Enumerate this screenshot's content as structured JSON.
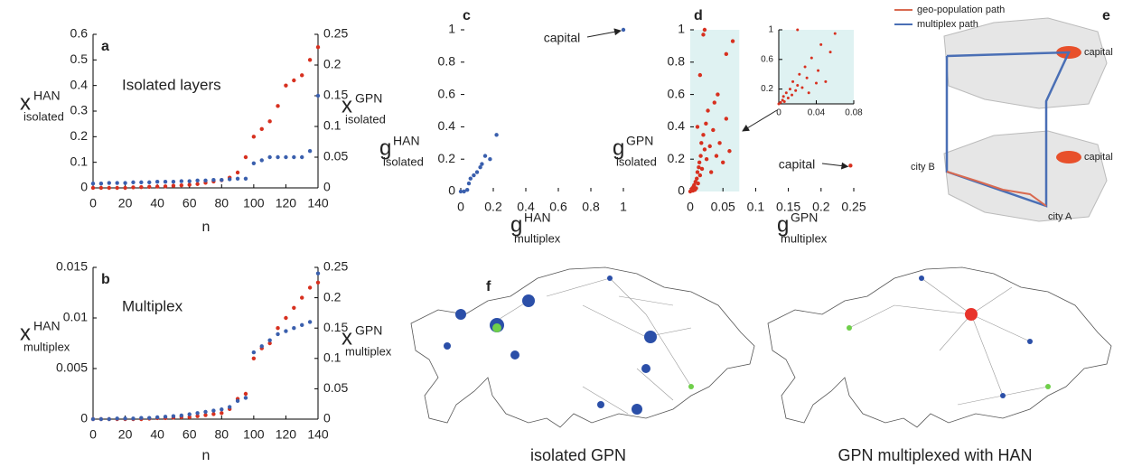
{
  "chart_data": [
    {
      "type": "scatter",
      "label": "a",
      "annotation": "Isolated layers",
      "xlabel": "n",
      "ylabel": {
        "base": "x",
        "sup": "HAN",
        "sub": "isolated"
      },
      "y2label": {
        "base": "x",
        "sup": "GPN",
        "sub": "isolated"
      },
      "xlim": [
        0,
        140
      ],
      "xticks": [
        0,
        20,
        40,
        60,
        80,
        100,
        120,
        140
      ],
      "ylim": [
        0,
        0.6
      ],
      "yticks": [
        0,
        0.1,
        0.2,
        0.3,
        0.4,
        0.5,
        0.6
      ],
      "y2lim": [
        0,
        0.25
      ],
      "y2ticks": [
        0,
        0.05,
        0.1,
        0.15,
        0.2,
        0.25
      ],
      "x": [
        0,
        5,
        10,
        15,
        20,
        25,
        30,
        35,
        40,
        45,
        50,
        55,
        60,
        65,
        70,
        75,
        80,
        85,
        90,
        95,
        100,
        105,
        110,
        115,
        120,
        125,
        130,
        135,
        140
      ],
      "series": [
        {
          "color": "#d7301f",
          "values": [
            0,
            0,
            0,
            0,
            0,
            0.002,
            0.003,
            0.004,
            0.005,
            0.006,
            0.008,
            0.01,
            0.012,
            0.015,
            0.02,
            0.025,
            0.03,
            0.04,
            0.06,
            0.12,
            0.2,
            0.23,
            0.26,
            0.32,
            0.4,
            0.42,
            0.44,
            0.5,
            0.55
          ]
        },
        {
          "color": "#3a5fad",
          "axis": "y2",
          "values": [
            0.007,
            0.007,
            0.008,
            0.008,
            0.008,
            0.009,
            0.009,
            0.009,
            0.01,
            0.01,
            0.01,
            0.011,
            0.011,
            0.012,
            0.012,
            0.013,
            0.013,
            0.014,
            0.015,
            0.015,
            0.04,
            0.045,
            0.05,
            0.05,
            0.05,
            0.05,
            0.05,
            0.06,
            0.15
          ]
        }
      ]
    },
    {
      "type": "scatter",
      "label": "b",
      "annotation": "Multiplex",
      "xlabel": "n",
      "ylabel": {
        "base": "x",
        "sup": "HAN",
        "sub": "multiplex"
      },
      "y2label": {
        "base": "x",
        "sup": "GPN",
        "sub": "multiplex"
      },
      "xlim": [
        0,
        140
      ],
      "xticks": [
        0,
        20,
        40,
        60,
        80,
        100,
        120,
        140
      ],
      "ylim": [
        0,
        0.015
      ],
      "yticks": [
        0,
        0.005,
        0.01,
        0.015
      ],
      "y2lim": [
        0,
        0.25
      ],
      "y2ticks": [
        0,
        0.05,
        0.1,
        0.15,
        0.2,
        0.25
      ],
      "x": [
        0,
        5,
        10,
        15,
        20,
        25,
        30,
        35,
        40,
        45,
        50,
        55,
        60,
        65,
        70,
        75,
        80,
        85,
        90,
        95,
        100,
        105,
        110,
        115,
        120,
        125,
        130,
        135,
        140
      ],
      "series": [
        {
          "color": "#d7301f",
          "values": [
            0,
            0,
            0,
            0,
            0,
            0,
            0,
            5e-05,
            0.0001,
            0.0001,
            0.00015,
            0.0002,
            0.0002,
            0.0003,
            0.0004,
            0.0005,
            0.0006,
            0.001,
            0.002,
            0.0025,
            0.006,
            0.007,
            0.0075,
            0.009,
            0.01,
            0.011,
            0.012,
            0.013,
            0.0135
          ]
        },
        {
          "color": "#3a5fad",
          "axis": "y2",
          "values": [
            0,
            0,
            0,
            0.001,
            0.001,
            0.001,
            0.002,
            0.002,
            0.003,
            0.004,
            0.005,
            0.006,
            0.008,
            0.01,
            0.012,
            0.014,
            0.016,
            0.02,
            0.03,
            0.035,
            0.11,
            0.12,
            0.13,
            0.14,
            0.145,
            0.15,
            0.155,
            0.16,
            0.24
          ]
        }
      ]
    },
    {
      "type": "scatter",
      "label": "c",
      "annotation": "capital",
      "xlabel": {
        "base": "g",
        "sup": "HAN",
        "sub": "multiplex"
      },
      "ylabel": {
        "base": "g",
        "sup": "HAN",
        "sub": "isolated"
      },
      "xlim": [
        0,
        1
      ],
      "xticks": [
        0,
        0.2,
        0.4,
        0.6,
        0.8,
        1
      ],
      "ylim": [
        0,
        1
      ],
      "yticks": [
        0,
        0.2,
        0.4,
        0.6,
        0.8,
        1
      ],
      "series": [
        {
          "color": "#3a5fad",
          "x": [
            0,
            0.02,
            0.04,
            0.05,
            0.06,
            0.08,
            0.1,
            0.12,
            0.13,
            0.15,
            0.18,
            0.22,
            1
          ],
          "values": [
            0,
            0,
            0.01,
            0.05,
            0.08,
            0.1,
            0.12,
            0.15,
            0.17,
            0.22,
            0.2,
            0.35,
            1
          ]
        }
      ]
    },
    {
      "type": "scatter",
      "label": "d",
      "annotation": "capital",
      "xlabel": {
        "base": "g",
        "sup": "GPN",
        "sub": "multiplex"
      },
      "ylabel": {
        "base": "g",
        "sup": "GPN",
        "sub": "isolated"
      },
      "xlim": [
        0,
        0.25
      ],
      "xticks": [
        0,
        0.05,
        0.1,
        0.15,
        0.2,
        0.25
      ],
      "ylim": [
        0,
        1
      ],
      "yticks": [
        0,
        0.2,
        0.4,
        0.6,
        0.8,
        1
      ],
      "highlight_x": [
        0,
        0.075
      ],
      "highlight_color": "#dff2f2",
      "series": [
        {
          "color": "#d7301f",
          "x": [
            0,
            0.002,
            0.003,
            0.004,
            0.005,
            0.006,
            0.007,
            0.008,
            0.009,
            0.01,
            0.011,
            0.012,
            0.013,
            0.014,
            0.015,
            0.016,
            0.017,
            0.018,
            0.02,
            0.022,
            0.024,
            0.025,
            0.027,
            0.03,
            0.032,
            0.035,
            0.037,
            0.04,
            0.042,
            0.045,
            0.05,
            0.055,
            0.06,
            0.065,
            0.02,
            0.022,
            0.011,
            0.015,
            0.055,
            0.245
          ],
          "values": [
            0,
            0.01,
            0.02,
            0.005,
            0.03,
            0.04,
            0.01,
            0.06,
            0.02,
            0.08,
            0.12,
            0.05,
            0.15,
            0.18,
            0.1,
            0.22,
            0.3,
            0.14,
            0.35,
            0.26,
            0.42,
            0.2,
            0.5,
            0.28,
            0.12,
            0.38,
            0.55,
            0.22,
            0.6,
            0.3,
            0.18,
            0.45,
            0.25,
            0.93,
            0.97,
            1.0,
            0.4,
            0.72,
            0.85,
            0.16
          ]
        }
      ]
    },
    {
      "type": "scatter",
      "inset": true,
      "background": "#dff2f2",
      "xlim": [
        0,
        0.08
      ],
      "xticks": [
        0,
        0.04,
        0.08
      ],
      "ylim": [
        0,
        1
      ],
      "yticks": [
        0.2,
        0.6,
        1
      ],
      "series": [
        {
          "color": "#d7301f",
          "x": [
            0,
            0.002,
            0.004,
            0.005,
            0.006,
            0.008,
            0.01,
            0.012,
            0.014,
            0.015,
            0.018,
            0.02,
            0.022,
            0.025,
            0.028,
            0.03,
            0.032,
            0.035,
            0.04,
            0.042,
            0.045,
            0.05,
            0.055,
            0.06,
            0.02
          ],
          "values": [
            0,
            0.02,
            0.05,
            0.1,
            0.03,
            0.15,
            0.08,
            0.2,
            0.12,
            0.3,
            0.18,
            0.25,
            0.4,
            0.22,
            0.5,
            0.35,
            0.15,
            0.62,
            0.28,
            0.45,
            0.8,
            0.3,
            0.7,
            0.95,
            1.0
          ]
        }
      ]
    }
  ],
  "diagram": {
    "label": "e",
    "legend": [
      "geo-population path",
      "multiplex path"
    ],
    "places": [
      "capital",
      "capital",
      "city B",
      "city A"
    ]
  },
  "maps": {
    "label": "f",
    "captions": [
      "isolated GPN",
      "GPN multiplexed with HAN"
    ]
  }
}
